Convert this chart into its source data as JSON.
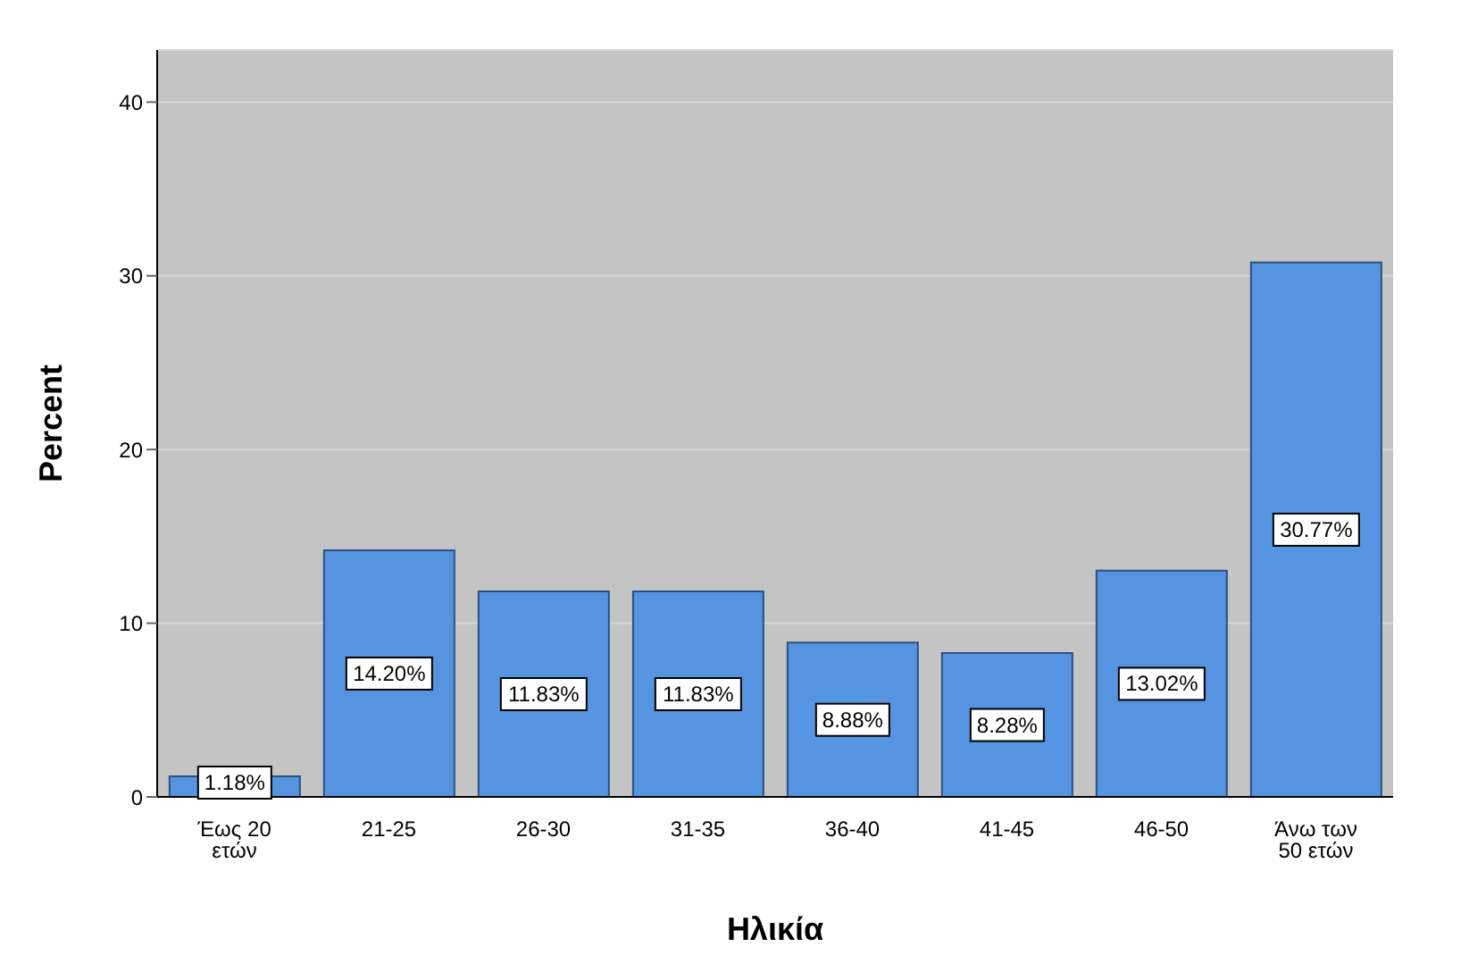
{
  "chart_data": {
    "type": "bar",
    "xlabel": "Ηλικία",
    "ylabel": "Percent",
    "categories": [
      "Έως 20 ετών",
      "21-25",
      "26-30",
      "31-35",
      "36-40",
      "41-45",
      "46-50",
      "Άνω των 50 ετών"
    ],
    "values": [
      1.18,
      14.2,
      11.83,
      11.83,
      8.88,
      8.28,
      13.02,
      30.77
    ],
    "value_labels": [
      "1.18%",
      "14.20%",
      "11.83%",
      "11.83%",
      "8.88%",
      "8.28%",
      "13.02%",
      "30.77%"
    ],
    "color": "#5594e0",
    "ylim": [
      0,
      43
    ],
    "yticks": [
      0,
      10,
      20,
      30,
      40
    ],
    "grid": "y",
    "legend": false
  }
}
